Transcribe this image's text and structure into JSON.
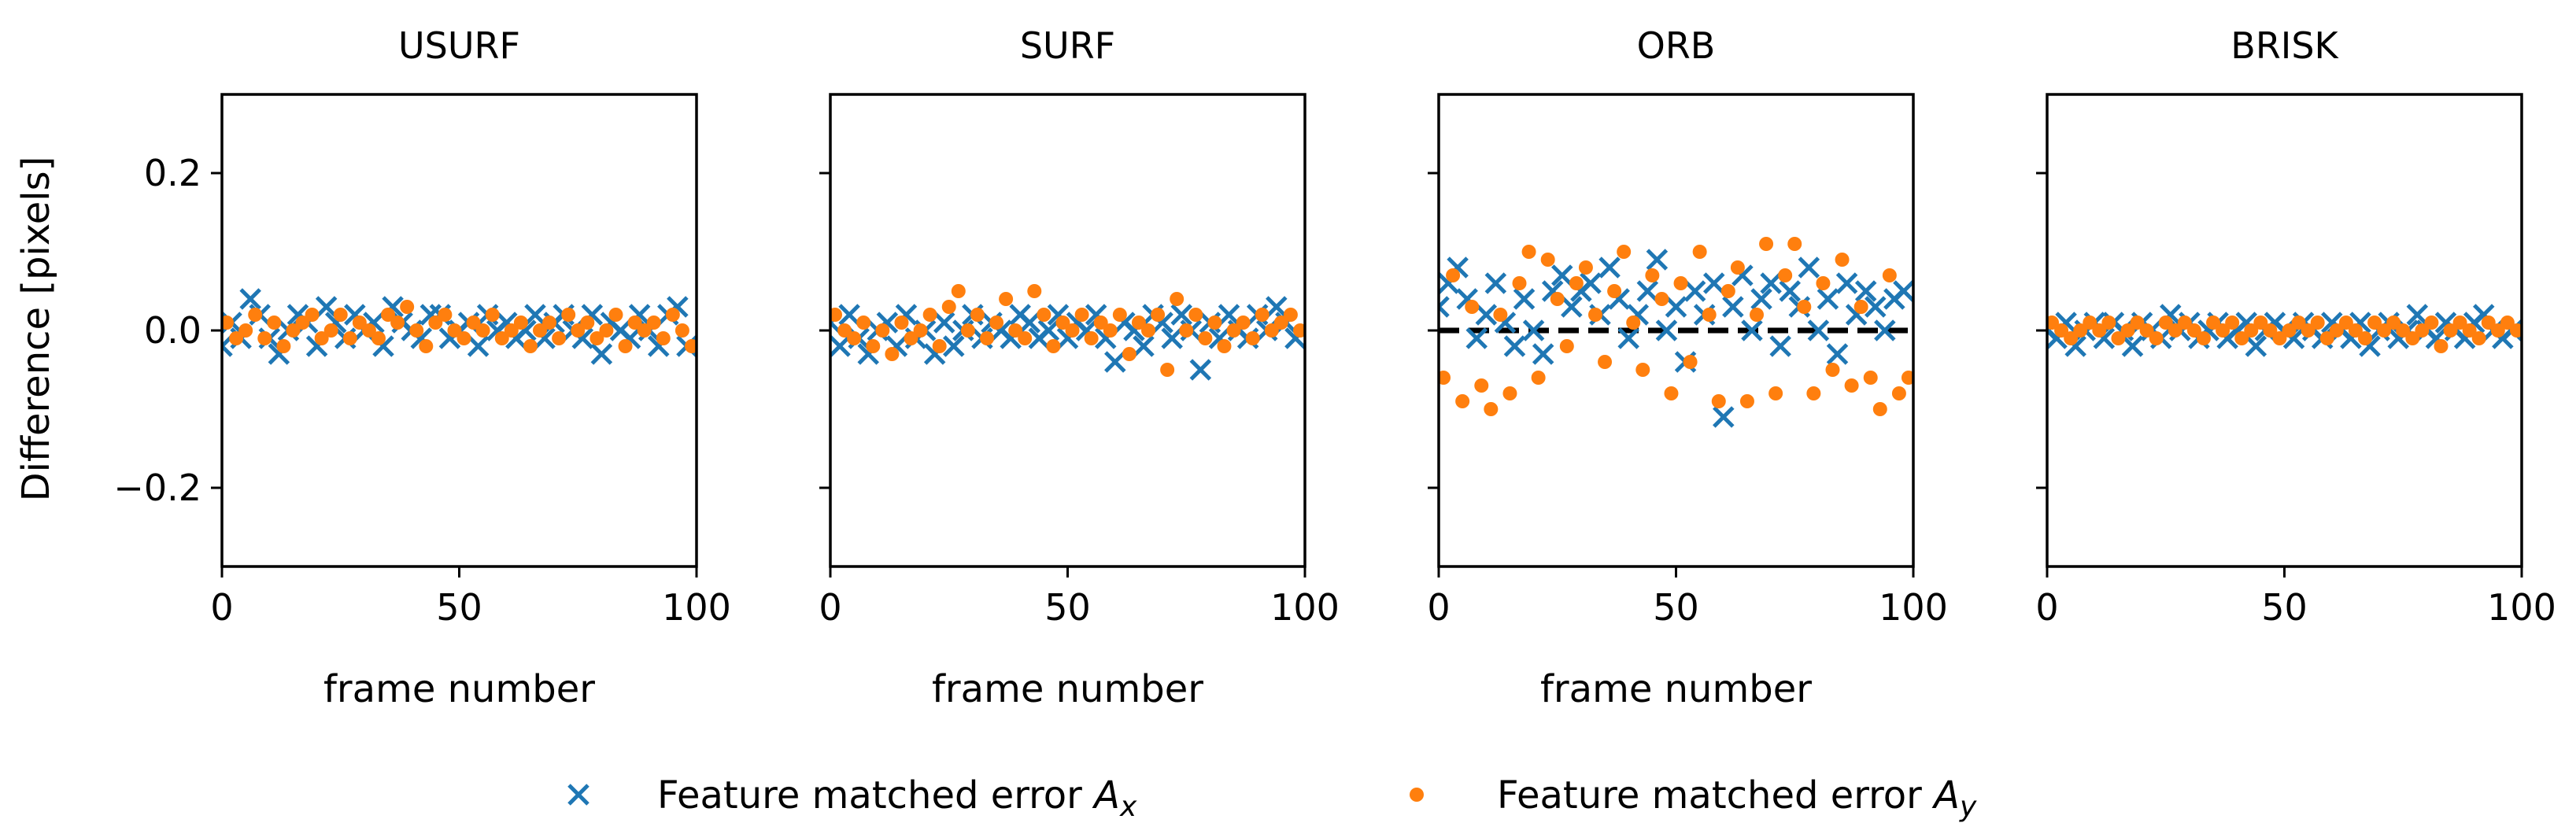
{
  "colors": {
    "ax": "#1f77b4",
    "ay": "#ff7f0e",
    "axis": "#000000"
  },
  "ylabel": "Difference [pixels]",
  "legend": {
    "placement": "bottom-center",
    "items": [
      {
        "marker": "x",
        "color": "#1f77b4",
        "text_prefix": "Feature matched error ",
        "symbol": "A",
        "sub": "x"
      },
      {
        "marker": "o",
        "color": "#ff7f0e",
        "text_prefix": "Feature matched error ",
        "symbol": "A",
        "sub": "y"
      }
    ]
  },
  "chart_data": [
    {
      "type": "scatter",
      "title": "USURF",
      "xlabel": "frame number",
      "xlim": [
        0,
        100
      ],
      "ylim": [
        -0.3,
        0.3
      ],
      "xticks": [
        0,
        50,
        100
      ],
      "yticks": [
        -0.2,
        0.0,
        0.2
      ],
      "ytick_labels": [
        "−0.2",
        "0.0",
        "0.2"
      ],
      "reference_line": null,
      "series": [
        {
          "name": "Feature matched error Ax",
          "marker": "x",
          "x": [
            0,
            2,
            4,
            6,
            8,
            10,
            12,
            14,
            16,
            18,
            20,
            22,
            24,
            26,
            28,
            30,
            32,
            34,
            36,
            38,
            40,
            42,
            44,
            46,
            48,
            50,
            52,
            54,
            56,
            58,
            60,
            62,
            64,
            66,
            68,
            70,
            72,
            74,
            76,
            78,
            80,
            82,
            84,
            86,
            88,
            90,
            92,
            94,
            96,
            98
          ],
          "y": [
            -0.02,
            0.01,
            -0.01,
            0.04,
            0.02,
            -0.01,
            -0.03,
            0.0,
            0.02,
            0.01,
            -0.02,
            0.03,
            0.01,
            -0.01,
            0.02,
            0.0,
            0.01,
            -0.02,
            0.03,
            0.01,
            0.0,
            -0.01,
            0.02,
            0.02,
            -0.01,
            0.0,
            0.01,
            -0.02,
            0.02,
            0.0,
            0.01,
            -0.01,
            0.0,
            0.02,
            -0.01,
            0.01,
            0.02,
            0.0,
            -0.01,
            0.02,
            -0.03,
            0.01,
            0.0,
            -0.01,
            0.02,
            0.0,
            -0.02,
            0.02,
            0.03,
            -0.02
          ]
        },
        {
          "name": "Feature matched error Ay",
          "marker": "o",
          "x": [
            1,
            3,
            5,
            7,
            9,
            11,
            13,
            15,
            17,
            19,
            21,
            23,
            25,
            27,
            29,
            31,
            33,
            35,
            37,
            39,
            41,
            43,
            45,
            47,
            49,
            51,
            53,
            55,
            57,
            59,
            61,
            63,
            65,
            67,
            69,
            71,
            73,
            75,
            77,
            79,
            81,
            83,
            85,
            87,
            89,
            91,
            93,
            95,
            97,
            99
          ],
          "y": [
            0.01,
            -0.01,
            0.0,
            0.02,
            -0.01,
            0.01,
            -0.02,
            0.0,
            0.01,
            0.02,
            -0.01,
            0.0,
            0.02,
            -0.01,
            0.01,
            0.0,
            -0.01,
            0.02,
            0.01,
            0.03,
            0.0,
            -0.02,
            0.01,
            0.02,
            0.0,
            -0.01,
            0.01,
            0.0,
            0.02,
            -0.01,
            0.0,
            0.01,
            -0.02,
            0.0,
            0.01,
            -0.01,
            0.02,
            0.0,
            0.01,
            -0.01,
            0.0,
            0.02,
            -0.02,
            0.01,
            0.0,
            0.01,
            -0.01,
            0.02,
            0.0,
            -0.02
          ]
        }
      ]
    },
    {
      "type": "scatter",
      "title": "SURF",
      "xlabel": "frame number",
      "xlim": [
        0,
        100
      ],
      "ylim": [
        -0.3,
        0.3
      ],
      "xticks": [
        0,
        50,
        100
      ],
      "yticks": [
        -0.2,
        0.0,
        0.2
      ],
      "ytick_labels": [
        "",
        "",
        ""
      ],
      "reference_line": null,
      "series": [
        {
          "name": "Feature matched error Ax",
          "marker": "x",
          "x": [
            0,
            2,
            4,
            6,
            8,
            10,
            12,
            14,
            16,
            18,
            20,
            22,
            24,
            26,
            28,
            30,
            32,
            34,
            36,
            38,
            40,
            42,
            44,
            46,
            48,
            50,
            52,
            54,
            56,
            58,
            60,
            62,
            64,
            66,
            68,
            70,
            72,
            74,
            76,
            78,
            80,
            82,
            84,
            86,
            88,
            90,
            92,
            94,
            96,
            98
          ],
          "y": [
            0.01,
            -0.02,
            0.02,
            -0.01,
            -0.03,
            0.0,
            0.01,
            -0.02,
            0.02,
            -0.01,
            0.0,
            -0.03,
            0.01,
            -0.02,
            0.0,
            0.02,
            -0.01,
            0.01,
            0.0,
            -0.01,
            0.02,
            0.01,
            -0.01,
            0.0,
            0.02,
            -0.01,
            0.01,
            0.0,
            0.02,
            -0.01,
            -0.04,
            0.01,
            0.0,
            -0.02,
            0.02,
            0.01,
            -0.01,
            0.02,
            0.0,
            -0.05,
            0.01,
            -0.01,
            0.02,
            0.0,
            -0.01,
            0.02,
            0.0,
            0.03,
            0.01,
            -0.01
          ]
        },
        {
          "name": "Feature matched error Ay",
          "marker": "o",
          "x": [
            1,
            3,
            5,
            7,
            9,
            11,
            13,
            15,
            17,
            19,
            21,
            23,
            25,
            27,
            29,
            31,
            33,
            35,
            37,
            39,
            41,
            43,
            45,
            47,
            49,
            51,
            53,
            55,
            57,
            59,
            61,
            63,
            65,
            67,
            69,
            71,
            73,
            75,
            77,
            79,
            81,
            83,
            85,
            87,
            89,
            91,
            93,
            95,
            97,
            99
          ],
          "y": [
            0.02,
            0.0,
            -0.01,
            0.01,
            -0.02,
            0.0,
            -0.03,
            0.01,
            -0.01,
            0.0,
            0.02,
            -0.02,
            0.03,
            0.05,
            0.0,
            0.02,
            -0.01,
            0.01,
            0.04,
            0.0,
            -0.01,
            0.05,
            0.02,
            -0.02,
            0.01,
            0.0,
            0.02,
            -0.01,
            0.01,
            0.0,
            0.02,
            -0.03,
            0.01,
            0.0,
            0.02,
            -0.05,
            0.04,
            0.0,
            0.02,
            -0.01,
            0.01,
            -0.02,
            0.0,
            0.01,
            -0.01,
            0.02,
            0.0,
            0.01,
            0.02,
            0.0
          ]
        }
      ]
    },
    {
      "type": "scatter",
      "title": "ORB",
      "xlabel": "frame number",
      "xlim": [
        0,
        100
      ],
      "ylim": [
        -0.3,
        0.3
      ],
      "xticks": [
        0,
        50,
        100
      ],
      "yticks": [
        -0.2,
        0.0,
        0.2
      ],
      "ytick_labels": [
        "",
        "",
        ""
      ],
      "reference_line": 0,
      "series": [
        {
          "name": "Feature matched error Ax",
          "marker": "x",
          "x": [
            0,
            2,
            4,
            6,
            8,
            10,
            12,
            14,
            16,
            18,
            20,
            22,
            24,
            26,
            28,
            30,
            32,
            34,
            36,
            38,
            40,
            42,
            44,
            46,
            48,
            50,
            52,
            54,
            56,
            58,
            60,
            62,
            64,
            66,
            68,
            70,
            72,
            74,
            76,
            78,
            80,
            82,
            84,
            86,
            88,
            90,
            92,
            94,
            96,
            98
          ],
          "y": [
            0.03,
            0.06,
            0.08,
            0.04,
            -0.01,
            0.02,
            0.06,
            0.01,
            -0.02,
            0.04,
            0.0,
            -0.03,
            0.05,
            0.07,
            0.03,
            0.05,
            0.06,
            0.02,
            0.08,
            0.04,
            -0.01,
            0.02,
            0.05,
            0.09,
            0.0,
            0.03,
            -0.04,
            0.05,
            0.02,
            0.06,
            -0.11,
            0.03,
            0.07,
            0.0,
            0.04,
            0.06,
            -0.02,
            0.05,
            0.03,
            0.08,
            0.0,
            0.04,
            -0.03,
            0.06,
            0.02,
            0.05,
            0.03,
            0.0,
            0.04,
            0.05
          ]
        },
        {
          "name": "Feature matched error Ay",
          "marker": "o",
          "x": [
            1,
            3,
            5,
            7,
            9,
            11,
            13,
            15,
            17,
            19,
            21,
            23,
            25,
            27,
            29,
            31,
            33,
            35,
            37,
            39,
            41,
            43,
            45,
            47,
            49,
            51,
            53,
            55,
            57,
            59,
            61,
            63,
            65,
            67,
            69,
            71,
            73,
            75,
            77,
            79,
            81,
            83,
            85,
            87,
            89,
            91,
            93,
            95,
            97,
            99
          ],
          "y": [
            -0.06,
            0.07,
            -0.09,
            0.03,
            -0.07,
            -0.1,
            0.02,
            -0.08,
            0.06,
            0.1,
            -0.06,
            0.09,
            0.04,
            -0.02,
            0.06,
            0.08,
            0.02,
            -0.04,
            0.05,
            0.1,
            0.01,
            -0.05,
            0.07,
            0.04,
            -0.08,
            0.06,
            -0.04,
            0.1,
            0.02,
            -0.09,
            0.05,
            0.08,
            -0.09,
            0.02,
            0.11,
            -0.08,
            0.07,
            0.11,
            0.03,
            -0.08,
            0.06,
            -0.05,
            0.09,
            -0.07,
            0.03,
            -0.06,
            -0.1,
            0.07,
            -0.08,
            -0.06
          ]
        }
      ]
    },
    {
      "type": "scatter",
      "title": "BRISK",
      "xlabel": "",
      "xlim": [
        0,
        100
      ],
      "ylim": [
        -0.3,
        0.3
      ],
      "xticks": [
        0,
        50,
        100
      ],
      "yticks": [
        -0.2,
        0.0,
        0.2
      ],
      "ytick_labels": [
        "",
        "",
        ""
      ],
      "reference_line": null,
      "series": [
        {
          "name": "Feature matched error Ax",
          "marker": "x",
          "x": [
            0,
            2,
            4,
            6,
            8,
            10,
            12,
            14,
            16,
            18,
            20,
            22,
            24,
            26,
            28,
            30,
            32,
            34,
            36,
            38,
            40,
            42,
            44,
            46,
            48,
            50,
            52,
            54,
            56,
            58,
            60,
            62,
            64,
            66,
            68,
            70,
            72,
            74,
            76,
            78,
            80,
            82,
            84,
            86,
            88,
            90,
            92,
            94,
            96,
            98
          ],
          "y": [
            0.0,
            -0.01,
            0.01,
            -0.02,
            0.0,
            0.01,
            -0.01,
            0.01,
            0.0,
            -0.02,
            0.01,
            0.0,
            -0.01,
            0.02,
            0.0,
            0.01,
            -0.01,
            0.0,
            0.01,
            -0.01,
            0.0,
            0.01,
            -0.02,
            0.0,
            0.01,
            0.0,
            -0.01,
            0.01,
            0.0,
            -0.01,
            0.01,
            0.0,
            -0.01,
            0.01,
            -0.02,
            0.0,
            0.01,
            -0.01,
            0.0,
            0.02,
            0.0,
            -0.01,
            0.01,
            0.0,
            -0.01,
            0.01,
            0.02,
            0.0,
            -0.01,
            0.0
          ]
        },
        {
          "name": "Feature matched error Ay",
          "marker": "o",
          "x": [
            1,
            3,
            5,
            7,
            9,
            11,
            13,
            15,
            17,
            19,
            21,
            23,
            25,
            27,
            29,
            31,
            33,
            35,
            37,
            39,
            41,
            43,
            45,
            47,
            49,
            51,
            53,
            55,
            57,
            59,
            61,
            63,
            65,
            67,
            69,
            71,
            73,
            75,
            77,
            79,
            81,
            83,
            85,
            87,
            89,
            91,
            93,
            95,
            97,
            99
          ],
          "y": [
            0.01,
            0.0,
            -0.01,
            0.0,
            0.01,
            0.0,
            0.01,
            -0.01,
            0.0,
            0.01,
            0.0,
            -0.01,
            0.01,
            0.0,
            0.01,
            0.0,
            -0.01,
            0.01,
            0.0,
            0.01,
            -0.01,
            0.0,
            0.01,
            0.0,
            -0.01,
            0.0,
            0.01,
            0.0,
            0.01,
            -0.01,
            0.0,
            0.01,
            0.0,
            -0.01,
            0.01,
            0.0,
            0.01,
            0.0,
            -0.01,
            0.0,
            0.01,
            -0.02,
            0.0,
            0.01,
            0.0,
            -0.01,
            0.01,
            0.0,
            0.01,
            0.0
          ]
        }
      ]
    }
  ]
}
